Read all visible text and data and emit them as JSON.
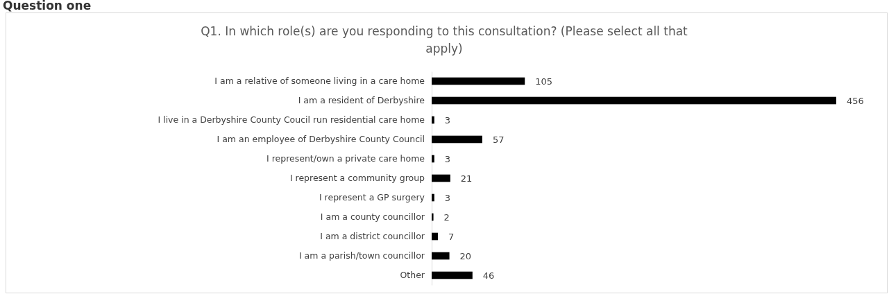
{
  "chart_data": {
    "type": "bar",
    "orientation": "horizontal",
    "title": "Q1. In which role(s) are you responding to this consultation? (Please select all that apply)",
    "annotations": [
      "Question one"
    ],
    "categories": [
      "I am a relative of someone living in a care home",
      "I am a resident of Derbyshire",
      "I live in a Derbyshire County Coucil run residential care home",
      "I am an employee of Derbyshire County Council",
      "I represent/own a private care home",
      "I represent a community group",
      "I represent a GP surgery",
      "I am a county councillor",
      "I am a district councillor",
      "I am a parish/town councillor",
      "Other"
    ],
    "values": [
      105,
      456,
      3,
      57,
      3,
      21,
      3,
      2,
      7,
      20,
      46
    ],
    "color": "#000000",
    "data_labels": true
  }
}
